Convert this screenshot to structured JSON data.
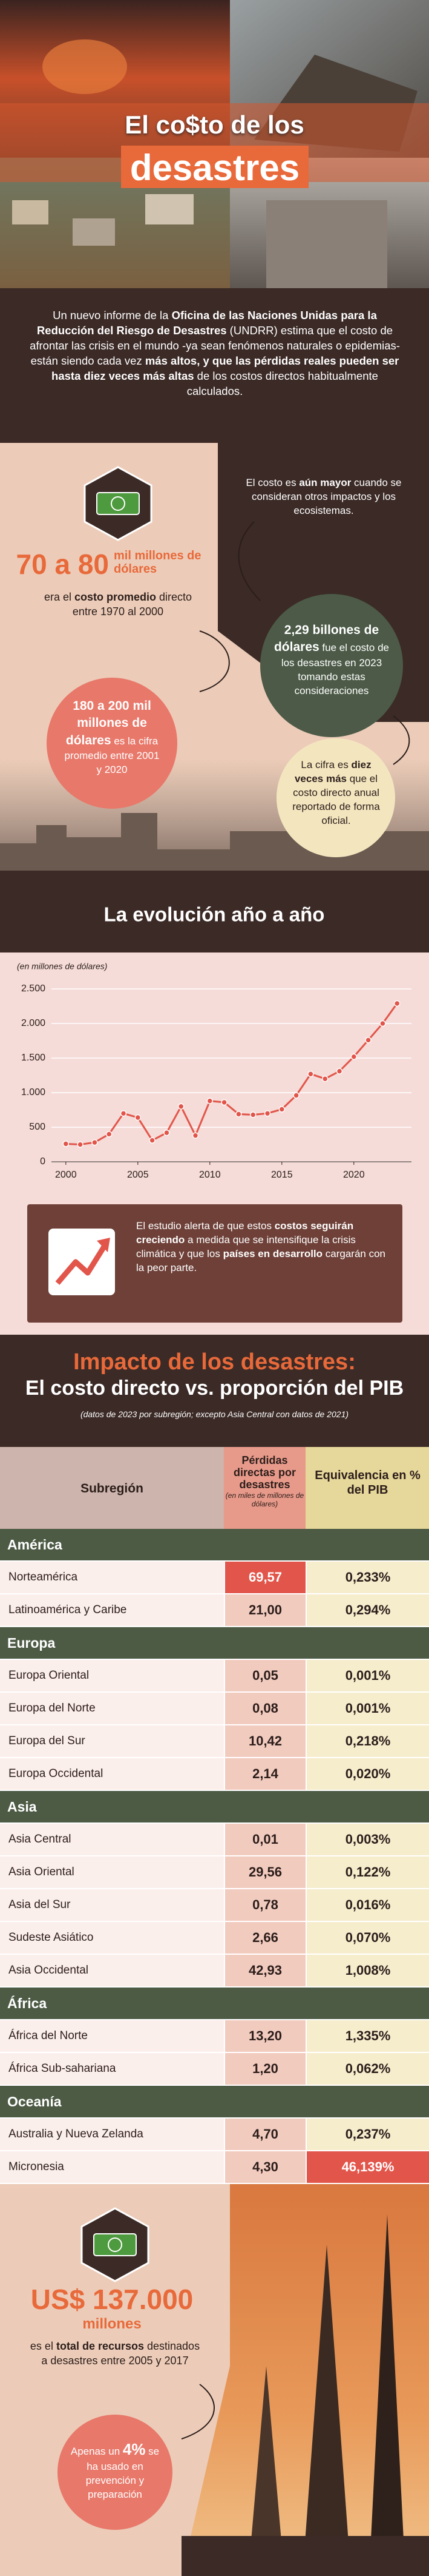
{
  "header": {
    "title_line1": "El co$to de los",
    "title_line2": "desastres"
  },
  "intro": [
    "Un nuevo informe de la ",
    "Oficina de las Naciones Unidas para la Reducción del Riesgo de Desastres",
    " (UNDRR) estima que el costo de afrontar las crisis en el mundo -ya sean fenómenos naturales o epidemias- están siendo cada vez ",
    "más altos, y que las pérdidas reales pueden ser hasta diez veces más altas",
    " de los costos directos habitualmente calculados."
  ],
  "stats": {
    "average_old": {
      "figure": "70 a 80",
      "unit": "mil millones de dólares",
      "text": [
        "era el ",
        "costo promedio",
        " directo entre 1970 al 2000"
      ]
    },
    "note": [
      "El costo es ",
      "aún mayor",
      " cuando se consideran otros impactos y los ecosistemas."
    ],
    "total_2023": [
      "2,29 billones de dólares",
      " fue el costo de los desastres en 2023 tomando estas consideraciones"
    ],
    "average_new": [
      "180 a 200 mil millones de dólares",
      " es la cifra promedio entre 2001 y 2020"
    ],
    "comparison": [
      "La cifra es ",
      "diez veces más",
      " que el costo directo anual reportado de forma oficial."
    ]
  },
  "chart_data": {
    "type": "line",
    "title": "La evolución año a año",
    "y_label": "(en millones de dólares)",
    "x": [
      2000,
      2001,
      2002,
      2003,
      2004,
      2005,
      2006,
      2007,
      2008,
      2009,
      2010,
      2011,
      2012,
      2013,
      2014,
      2015,
      2016,
      2017,
      2018,
      2019,
      2020,
      2021,
      2022,
      2023
    ],
    "values": [
      260,
      250,
      280,
      400,
      700,
      640,
      310,
      420,
      800,
      380,
      880,
      860,
      690,
      680,
      700,
      760,
      960,
      1270,
      1200,
      1310,
      1520,
      1760,
      2000,
      2290
    ],
    "color": "#e2554a",
    "xlim": [
      1999,
      2024
    ],
    "xticks": [
      2000,
      2005,
      2010,
      2015,
      2020
    ],
    "ylim": [
      0,
      2500
    ],
    "yticks": [
      0,
      500,
      {
        "value": 1000,
        "label": "1.000"
      },
      {
        "value": 1500,
        "label": "1.500"
      },
      {
        "value": 2000,
        "label": "2.000"
      },
      {
        "value": 2500,
        "label": "2.500"
      }
    ],
    "grid": true
  },
  "alert": [
    "El estudio alerta de que estos ",
    "costos seguirán creciendo",
    " a medida que se intensifique la crisis climática y que los ",
    "países en desarrollo",
    " cargarán con la peor parte."
  ],
  "table": {
    "title": "Impacto de los desastres:",
    "subtitle": "El costo directo vs. proporción del PIB",
    "note": "(datos de 2023 por subregión; excepto Asia Central con datos de 2021)",
    "columns": [
      "Subregión",
      "Pérdidas directas por desastres",
      "Equivalencia en % del PIB"
    ],
    "column_note": "(en miles de millones de dólares)",
    "groups": [
      {
        "name": "América",
        "rows": [
          [
            "Norteamérica",
            "69,57",
            "0,233%"
          ],
          [
            "Latinoamérica y Caribe",
            "21,00",
            "0,294%"
          ]
        ]
      },
      {
        "name": "Europa",
        "rows": [
          [
            "Europa Oriental",
            "0,05",
            "0,001%"
          ],
          [
            "Europa del Norte",
            "0,08",
            "0,001%"
          ],
          [
            "Europa del Sur",
            "10,42",
            "0,218%"
          ],
          [
            "Europa Occidental",
            "2,14",
            "0,020%"
          ]
        ]
      },
      {
        "name": "Asia",
        "rows": [
          [
            "Asia Central",
            "0,01",
            "0,003%"
          ],
          [
            "Asia Oriental",
            "29,56",
            "0,122%"
          ],
          [
            "Asia del Sur",
            "0,78",
            "0,016%"
          ],
          [
            "Sudeste Asiático",
            "2,66",
            "0,070%"
          ],
          [
            "Asia Occidental",
            "42,93",
            "1,008%"
          ]
        ]
      },
      {
        "name": "África",
        "rows": [
          [
            "África del Norte",
            "13,20",
            "1,335%"
          ],
          [
            "África Sub-sahariana",
            "1,20",
            "0,062%"
          ]
        ]
      },
      {
        "name": "Oceanía",
        "rows": [
          [
            "Australia y Nueva Zelanda",
            "4,70",
            "0,237%"
          ],
          [
            "Micronesia",
            "4,30",
            "46,139%"
          ]
        ]
      }
    ]
  },
  "resources": {
    "figure": "US$ 137.000",
    "unit": "millones",
    "text": [
      "es el ",
      "total de recursos",
      " destinados a desastres entre 2005 y 2017"
    ],
    "share": [
      "Apenas un ",
      "4%",
      " se ha usado en prevención y preparación"
    ]
  }
}
